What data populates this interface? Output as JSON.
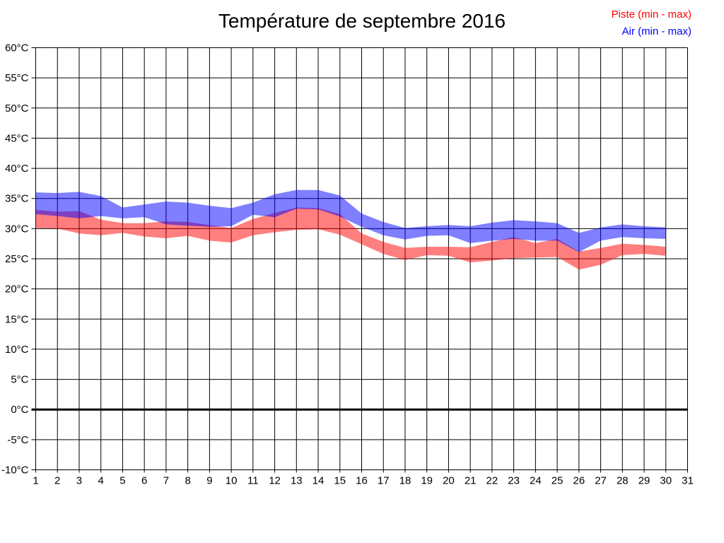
{
  "title": "Température de septembre 2016",
  "legend": {
    "items": [
      {
        "label": "Piste (min - max)",
        "color": "#ff0000"
      },
      {
        "label": "Air (min - max)",
        "color": "#0000ff"
      }
    ]
  },
  "chart_data": {
    "type": "area",
    "title": "Température de septembre 2016",
    "xlabel": "",
    "ylabel": "",
    "x": [
      1,
      2,
      3,
      4,
      5,
      6,
      7,
      8,
      9,
      10,
      11,
      12,
      13,
      14,
      15,
      16,
      17,
      18,
      19,
      20,
      21,
      22,
      23,
      24,
      25,
      26,
      27,
      28,
      29,
      30
    ],
    "x_axis": {
      "tick_min": 1,
      "tick_max": 31,
      "tick_step": 1
    },
    "y_axis": {
      "min": -10,
      "max": 60,
      "tick_step": 5,
      "unit": "°C",
      "bold_line_at": 0
    },
    "grid": true,
    "legend_position": "top-right",
    "band_opacity": 0.5,
    "series": [
      {
        "name": "Piste (min - max)",
        "color": "#ff0000",
        "max": [
          33.1,
          32.8,
          32.9,
          31.5,
          30.9,
          30.9,
          31.2,
          31.1,
          30.6,
          30.1,
          31.6,
          32.6,
          33.5,
          33.4,
          32.4,
          29.2,
          27.8,
          26.8,
          27.0,
          27.0,
          26.9,
          27.8,
          28.6,
          27.6,
          28.3,
          26.2,
          26.8,
          27.5,
          27.3,
          27.0
        ],
        "min": [
          30.1,
          30.0,
          29.2,
          28.9,
          29.3,
          28.7,
          28.4,
          28.8,
          28.0,
          27.7,
          28.9,
          29.4,
          29.8,
          29.9,
          29.0,
          27.4,
          25.8,
          24.8,
          25.6,
          25.5,
          24.4,
          24.7,
          25.1,
          25.2,
          25.3,
          23.2,
          24.0,
          25.6,
          25.8,
          25.5
        ]
      },
      {
        "name": "Air (min - max)",
        "color": "#0000ff",
        "max": [
          36.0,
          35.9,
          36.1,
          35.4,
          33.5,
          34.0,
          34.5,
          34.3,
          33.8,
          33.4,
          34.3,
          35.7,
          36.4,
          36.4,
          35.5,
          32.5,
          31.1,
          30.1,
          30.4,
          30.6,
          30.4,
          31.0,
          31.4,
          31.2,
          30.9,
          29.3,
          30.2,
          30.7,
          30.4,
          30.2
        ],
        "min": [
          32.4,
          32.1,
          31.7,
          32.1,
          31.7,
          31.9,
          30.7,
          30.5,
          30.3,
          30.4,
          32.3,
          31.9,
          33.3,
          33.2,
          32.0,
          30.3,
          28.9,
          28.2,
          28.8,
          28.9,
          27.6,
          28.0,
          28.3,
          28.0,
          28.0,
          26.1,
          28.0,
          28.6,
          28.4,
          28.3
        ]
      }
    ]
  }
}
